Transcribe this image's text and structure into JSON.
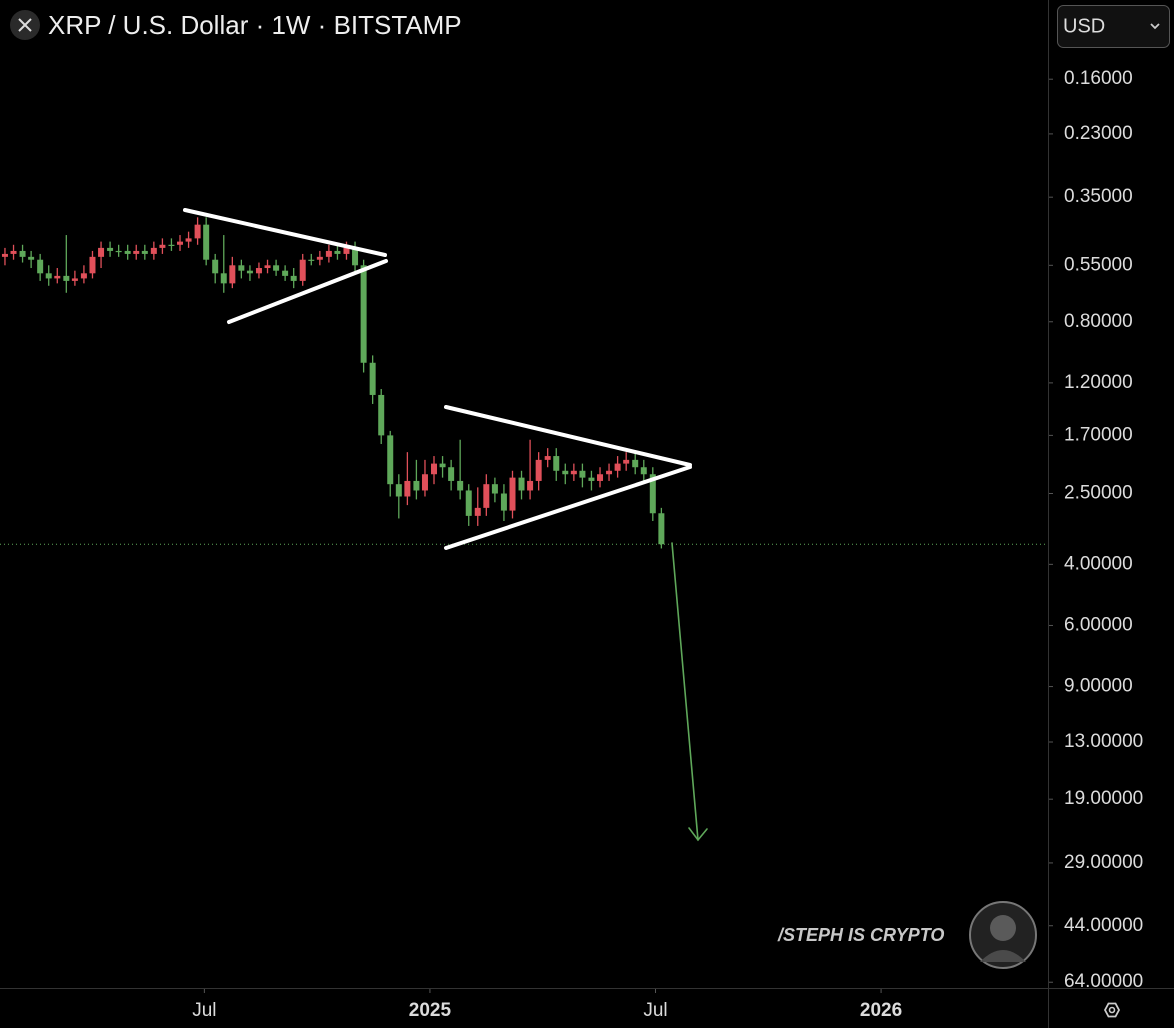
{
  "header": {
    "title": "XRP / U.S. Dollar · 1W · BITSTAMP",
    "currency": "USD"
  },
  "watermark": "/STEPH IS CRYPTO",
  "chart_data": {
    "type": "candlestick",
    "x": [
      2024.058,
      2024.077,
      2024.097,
      2024.116,
      2024.136,
      2024.155,
      2024.174,
      2024.194,
      2024.213,
      2024.233,
      2024.252,
      2024.271,
      2024.291,
      2024.31,
      2024.33,
      2024.349,
      2024.368,
      2024.388,
      2024.407,
      2024.427,
      2024.446,
      2024.465,
      2024.485,
      2024.504,
      2024.524,
      2024.543,
      2024.562,
      2024.582,
      2024.601,
      2024.621,
      2024.64,
      2024.659,
      2024.679,
      2024.698,
      2024.718,
      2024.737,
      2024.756,
      2024.776,
      2024.795,
      2024.815,
      2024.834,
      2024.853,
      2024.873,
      2024.892,
      2024.912,
      2024.931,
      2024.95,
      2024.97,
      2024.989,
      2025.009,
      2025.028,
      2025.047,
      2025.067,
      2025.086,
      2025.106,
      2025.125,
      2025.144,
      2025.164,
      2025.183,
      2025.203,
      2025.222,
      2025.241,
      2025.261,
      2025.28,
      2025.3,
      2025.319,
      2025.338,
      2025.358,
      2025.377,
      2025.397,
      2025.416,
      2025.435,
      2025.455,
      2025.474,
      2025.494,
      2025.513
    ],
    "open": [
      0.52,
      0.51,
      0.5,
      0.52,
      0.53,
      0.58,
      0.6,
      0.59,
      0.61,
      0.6,
      0.58,
      0.52,
      0.49,
      0.5,
      0.5,
      0.51,
      0.5,
      0.51,
      0.49,
      0.48,
      0.48,
      0.47,
      0.46,
      0.42,
      0.53,
      0.58,
      0.62,
      0.55,
      0.57,
      0.58,
      0.56,
      0.55,
      0.57,
      0.59,
      0.61,
      0.53,
      0.53,
      0.52,
      0.5,
      0.51,
      0.49,
      0.55,
      1.05,
      1.3,
      1.7,
      2.35,
      2.55,
      2.3,
      2.45,
      2.2,
      2.05,
      2.1,
      2.3,
      2.45,
      2.9,
      2.75,
      2.35,
      2.5,
      2.8,
      2.25,
      2.45,
      2.3,
      2.0,
      1.95,
      2.15,
      2.2,
      2.15,
      2.25,
      2.3,
      2.2,
      2.15,
      2.05,
      2.0,
      2.1,
      2.2,
      2.85
    ],
    "high": [
      0.55,
      0.53,
      0.54,
      0.56,
      0.61,
      0.63,
      0.62,
      0.66,
      0.63,
      0.62,
      0.6,
      0.56,
      0.52,
      0.52,
      0.53,
      0.53,
      0.53,
      0.53,
      0.51,
      0.5,
      0.5,
      0.49,
      0.48,
      0.55,
      0.62,
      0.66,
      0.64,
      0.6,
      0.61,
      0.6,
      0.58,
      0.59,
      0.61,
      0.64,
      0.63,
      0.55,
      0.55,
      0.54,
      0.53,
      0.53,
      0.58,
      1.12,
      1.38,
      1.8,
      2.55,
      2.95,
      2.7,
      2.6,
      2.55,
      2.35,
      2.25,
      2.45,
      2.6,
      3.1,
      3.1,
      2.9,
      2.65,
      3.0,
      2.95,
      2.6,
      2.6,
      2.45,
      2.1,
      2.3,
      2.35,
      2.3,
      2.4,
      2.45,
      2.4,
      2.3,
      2.25,
      2.15,
      2.2,
      2.3,
      3.0,
      3.6
    ],
    "low": [
      0.49,
      0.48,
      0.48,
      0.5,
      0.51,
      0.55,
      0.56,
      0.45,
      0.57,
      0.55,
      0.5,
      0.47,
      0.47,
      0.48,
      0.48,
      0.48,
      0.48,
      0.47,
      0.46,
      0.46,
      0.45,
      0.44,
      0.4,
      0.4,
      0.51,
      0.45,
      0.52,
      0.53,
      0.55,
      0.54,
      0.53,
      0.53,
      0.55,
      0.56,
      0.51,
      0.51,
      0.5,
      0.48,
      0.48,
      0.47,
      0.47,
      0.53,
      1.0,
      1.25,
      1.65,
      2.2,
      1.9,
      2.0,
      2.0,
      1.95,
      1.95,
      2.0,
      1.75,
      2.35,
      2.4,
      2.2,
      2.25,
      2.35,
      2.15,
      2.15,
      1.75,
      1.9,
      1.85,
      1.85,
      2.05,
      2.05,
      2.05,
      2.15,
      2.1,
      2.05,
      1.95,
      1.9,
      1.9,
      2.0,
      2.1,
      2.75
    ],
    "close": [
      0.51,
      0.5,
      0.52,
      0.53,
      0.58,
      0.6,
      0.59,
      0.61,
      0.6,
      0.58,
      0.52,
      0.49,
      0.5,
      0.5,
      0.51,
      0.5,
      0.51,
      0.49,
      0.48,
      0.48,
      0.47,
      0.46,
      0.42,
      0.53,
      0.58,
      0.62,
      0.55,
      0.57,
      0.58,
      0.56,
      0.55,
      0.57,
      0.59,
      0.61,
      0.53,
      0.53,
      0.52,
      0.5,
      0.51,
      0.49,
      0.55,
      1.05,
      1.3,
      1.7,
      2.35,
      2.55,
      2.3,
      2.45,
      2.2,
      2.05,
      2.1,
      2.3,
      2.45,
      2.9,
      2.75,
      2.35,
      2.5,
      2.8,
      2.25,
      2.45,
      2.3,
      2.0,
      1.95,
      2.15,
      2.2,
      2.15,
      2.25,
      2.3,
      2.2,
      2.15,
      2.05,
      2.0,
      2.1,
      2.2,
      2.85,
      3.5
    ],
    "xlim": [
      2024.047,
      2026.37
    ],
    "xticks": [
      {
        "value": 2024.5,
        "label": "Jul"
      },
      2025,
      {
        "value": 2025.5,
        "label": "Jul"
      },
      2026
    ],
    "ylim": [
      0.0946,
      66.5
    ],
    "log_scale": true,
    "y_inverted": true,
    "yticks": [
      {
        "value": 0.16,
        "label": "0.16000"
      },
      {
        "value": 0.23,
        "label": "0.23000"
      },
      {
        "value": 0.35,
        "label": "0.35000"
      },
      {
        "value": 0.55,
        "label": "0.55000"
      },
      {
        "value": 0.8,
        "label": "0.80000"
      },
      {
        "value": 1.2,
        "label": "1.20000"
      },
      {
        "value": 1.7,
        "label": "1.70000"
      },
      {
        "value": 2.5,
        "label": "2.50000"
      },
      {
        "value": 4,
        "label": "4.00000"
      },
      {
        "value": 6,
        "label": "6.00000"
      },
      {
        "value": 9,
        "label": "9.00000"
      },
      {
        "value": 13,
        "label": "13.00000"
      },
      {
        "value": 19,
        "label": "19.00000"
      },
      {
        "value": 29,
        "label": "29.00000"
      },
      {
        "value": 44,
        "label": "44.00000"
      },
      {
        "value": 64,
        "label": "64.00000"
      }
    ],
    "up_color": "#5fa85a",
    "down_color": "#e0505a"
  }
}
